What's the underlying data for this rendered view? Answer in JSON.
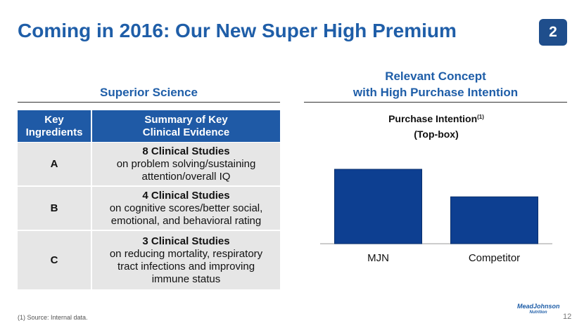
{
  "header": {
    "title": "Coming in 2016: Our New Super High Premium",
    "badge": "2"
  },
  "left": {
    "heading": "Superior Science",
    "table": {
      "columns": [
        "Key Ingredients",
        "Summary of Key Clinical Evidence"
      ],
      "rows": [
        {
          "key": "A",
          "studies": "8 Clinical Studies",
          "detail": "on problem solving/sustaining attention/overall IQ"
        },
        {
          "key": "B",
          "studies": "4 Clinical Studies",
          "detail": "on cognitive scores/better social, emotional, and behavioral rating"
        },
        {
          "key": "C",
          "studies": "3 Clinical Studies",
          "detail": "on reducing mortality, respiratory tract infections and improving immune status"
        }
      ]
    }
  },
  "right": {
    "heading_line1": "Relevant Concept",
    "heading_line2": "with High Purchase Intention"
  },
  "chart_data": {
    "type": "bar",
    "title": "Purchase Intention",
    "title_note": "(1)",
    "subtitle": "(Top-box)",
    "categories": [
      "MJN",
      "Competitor"
    ],
    "values": [
      100,
      63
    ],
    "color": "#0d3f91"
  },
  "footer": {
    "footnote": "(1) Source: Internal data.",
    "page_number": "12",
    "logo_line1": "MeadJohnson",
    "logo_line2": "Nutrition"
  }
}
